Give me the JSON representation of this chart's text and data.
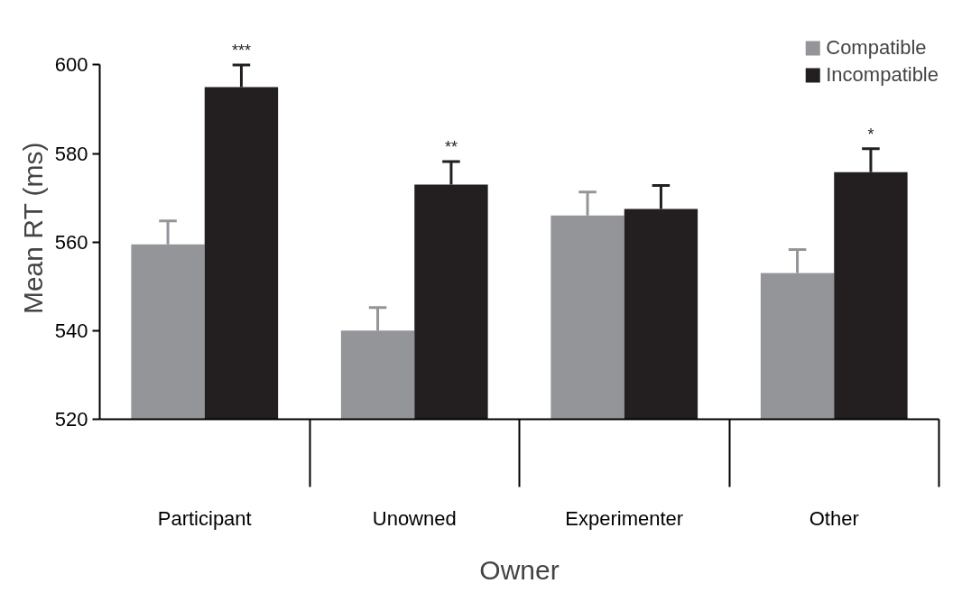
{
  "chart_data": {
    "type": "bar",
    "categories": [
      "Participant",
      "Unowned",
      "Experimenter",
      "Other"
    ],
    "series": [
      {
        "name": "Compatible",
        "color": "#939598",
        "values": [
          559.5,
          540,
          566,
          553
        ],
        "errors": [
          [
            559.5,
            564.8
          ],
          [
            540,
            545.2
          ],
          [
            566,
            571.3
          ],
          [
            553,
            558.3
          ]
        ]
      },
      {
        "name": "Incompatible",
        "color": "#231f20",
        "values": [
          595,
          573,
          567.5,
          575.8
        ],
        "errors": [
          [
            595,
            600
          ],
          [
            573,
            578.2
          ],
          [
            567.5,
            572.8
          ],
          [
            575.8,
            581.1
          ]
        ],
        "value_labels": [
          "***",
          "**",
          null,
          "*"
        ]
      }
    ],
    "ylim": [
      520,
      600
    ],
    "yticks": [
      520,
      540,
      560,
      580,
      600
    ],
    "ylabel": "Mean RT (ms)",
    "xlabel": "Owner",
    "grid": false,
    "legend": "top right"
  }
}
